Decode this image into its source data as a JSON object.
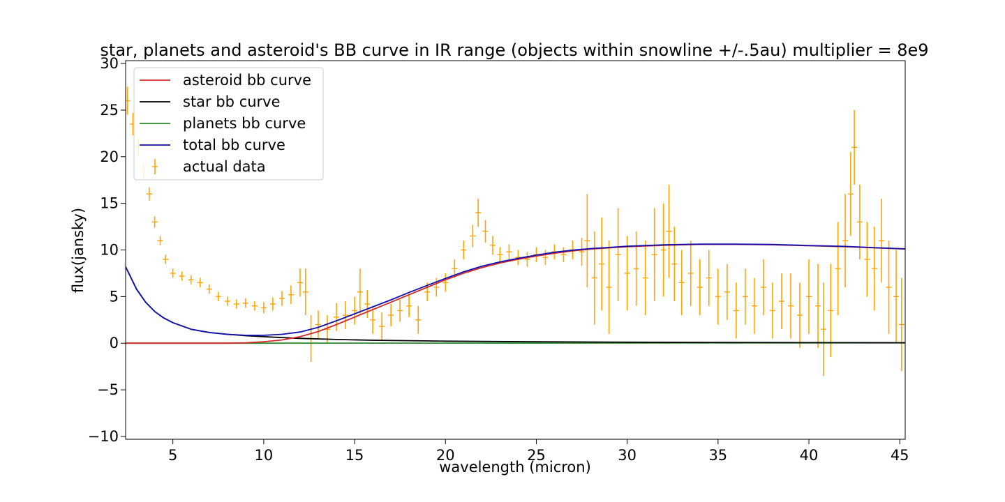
{
  "chart_data": {
    "type": "line",
    "title": "star, planets and asteroid's BB curve in IR range (objects within snowline +/-.5au) multiplier = 8e9",
    "xlabel": "wavelength (micron)",
    "ylabel": "flux(jansky)",
    "xlim": [
      2.4,
      45.3
    ],
    "ylim": [
      -10.3,
      30.3
    ],
    "xticks": [
      5,
      10,
      15,
      20,
      25,
      30,
      35,
      40,
      45
    ],
    "yticks": [
      -10,
      -5,
      0,
      5,
      10,
      15,
      20,
      25,
      30
    ],
    "xtick_labels": [
      "5",
      "10",
      "15",
      "20",
      "25",
      "30",
      "35",
      "40",
      "45"
    ],
    "ytick_labels": [
      "−10",
      "−5",
      "0",
      "5",
      "10",
      "15",
      "20",
      "25",
      "30"
    ],
    "grid": false,
    "legend_position": "top-left",
    "series": [
      {
        "name": "asteroid bb curve",
        "kind": "line",
        "color": "#d62728",
        "x": [
          2.4,
          6,
          8,
          9,
          10,
          11,
          12,
          13,
          14,
          15,
          16,
          17,
          18,
          19,
          20,
          21,
          22,
          23,
          24,
          25,
          26,
          27,
          28,
          30,
          32,
          34,
          36,
          38,
          40,
          42,
          44,
          45.3
        ],
        "y": [
          0,
          0,
          0,
          0.05,
          0.15,
          0.35,
          0.7,
          1.25,
          2.0,
          2.8,
          3.6,
          4.4,
          5.2,
          6.0,
          6.8,
          7.5,
          8.1,
          8.6,
          9.0,
          9.35,
          9.65,
          9.9,
          10.1,
          10.35,
          10.5,
          10.6,
          10.6,
          10.55,
          10.45,
          10.35,
          10.2,
          10.1
        ]
      },
      {
        "name": "star bb curve",
        "kind": "line",
        "color": "#000000",
        "x": [
          2.4,
          3,
          3.5,
          4,
          4.5,
          5,
          6,
          7,
          8,
          9,
          10,
          11,
          12,
          14,
          16,
          18,
          20,
          25,
          30,
          35,
          40,
          45.3
        ],
        "y": [
          8.2,
          5.8,
          4.4,
          3.4,
          2.7,
          2.2,
          1.5,
          1.15,
          0.95,
          0.8,
          0.7,
          0.6,
          0.52,
          0.4,
          0.32,
          0.27,
          0.22,
          0.15,
          0.11,
          0.08,
          0.06,
          0.05
        ]
      },
      {
        "name": "planets bb curve",
        "kind": "line",
        "color": "#2a8a2a",
        "x": [
          2.4,
          10,
          20,
          30,
          40,
          45.3
        ],
        "y": [
          0,
          0,
          0.01,
          0.02,
          0.03,
          0.04
        ]
      },
      {
        "name": "total bb curve",
        "kind": "line",
        "color": "#1010b0",
        "x": [
          2.4,
          3,
          3.5,
          4,
          4.5,
          5,
          6,
          7,
          8,
          9,
          10,
          11,
          12,
          13,
          14,
          15,
          16,
          17,
          18,
          19,
          20,
          21,
          22,
          23,
          24,
          25,
          26,
          27,
          28,
          30,
          32,
          34,
          36,
          38,
          40,
          42,
          44,
          45.3
        ],
        "y": [
          8.2,
          5.8,
          4.4,
          3.4,
          2.7,
          2.2,
          1.5,
          1.15,
          0.95,
          0.85,
          0.85,
          0.95,
          1.2,
          1.7,
          2.4,
          3.15,
          3.9,
          4.65,
          5.45,
          6.2,
          6.95,
          7.65,
          8.25,
          8.72,
          9.1,
          9.45,
          9.75,
          9.98,
          10.15,
          10.4,
          10.55,
          10.62,
          10.62,
          10.58,
          10.48,
          10.38,
          10.22,
          10.12
        ]
      },
      {
        "name": "actual data",
        "kind": "errorbar",
        "color": "#ffa500",
        "x": [
          2.5,
          2.8,
          3.1,
          3.4,
          3.7,
          4.0,
          4.3,
          4.6,
          5.0,
          5.5,
          6.0,
          6.5,
          7.0,
          7.5,
          8.0,
          8.5,
          9.0,
          9.5,
          10.0,
          10.5,
          11.0,
          11.5,
          12.0,
          12.3,
          12.6,
          13.0,
          13.5,
          14.0,
          14.5,
          15.0,
          15.3,
          15.7,
          16.0,
          16.5,
          17.0,
          17.5,
          18.0,
          18.5,
          19.0,
          19.5,
          20.0,
          20.5,
          21.0,
          21.5,
          21.8,
          22.2,
          22.6,
          23.0,
          23.5,
          24.0,
          24.5,
          25.0,
          25.5,
          26.0,
          26.5,
          27.0,
          27.5,
          27.8,
          28.2,
          28.6,
          29.0,
          29.5,
          30.0,
          30.5,
          31.0,
          31.5,
          32.0,
          32.3,
          32.6,
          33.0,
          33.5,
          34.0,
          34.5,
          35.0,
          35.5,
          36.0,
          36.5,
          37.0,
          37.5,
          38.0,
          38.5,
          39.0,
          39.5,
          40.0,
          40.5,
          40.8,
          41.2,
          41.6,
          42.0,
          42.3,
          42.5,
          42.8,
          43.2,
          43.6,
          44.0,
          44.4,
          44.8,
          45.1
        ],
        "y": [
          26,
          23.5,
          21,
          18.5,
          16,
          13,
          11,
          9,
          7.5,
          7.2,
          6.8,
          6.5,
          5.8,
          5.0,
          4.5,
          4.2,
          4.3,
          4.0,
          3.8,
          4.2,
          4.8,
          5.2,
          6.5,
          5.5,
          0.5,
          2.0,
          1.5,
          2.8,
          3.0,
          3.5,
          5.5,
          4.2,
          2.5,
          1.8,
          3.0,
          3.5,
          4.0,
          2.5,
          5.5,
          6.0,
          6.5,
          8.0,
          10.0,
          11.5,
          14.0,
          12.0,
          10.5,
          9.5,
          9.8,
          9.2,
          9.0,
          9.5,
          9.2,
          9.8,
          9.5,
          10.0,
          9.8,
          11.0,
          7.0,
          8.5,
          6.0,
          9.5,
          7.5,
          8.0,
          7.0,
          9.5,
          10.0,
          12.0,
          8.5,
          6.5,
          7.5,
          6.0,
          7.0,
          5.0,
          5.5,
          3.5,
          5.0,
          4.0,
          6.0,
          3.5,
          4.5,
          4.0,
          3.0,
          5.0,
          4.0,
          1.5,
          3.5,
          8.0,
          11.0,
          16.0,
          21.0,
          13.0,
          9.0,
          8.0,
          11.0,
          6.0,
          5.0,
          2.0
        ],
        "yerr": [
          1.5,
          1.2,
          1.0,
          0.8,
          0.7,
          0.6,
          0.5,
          0.5,
          0.5,
          0.5,
          0.5,
          0.5,
          0.5,
          0.5,
          0.5,
          0.5,
          0.5,
          0.5,
          0.6,
          0.7,
          0.8,
          1.0,
          1.5,
          2.5,
          2.5,
          1.5,
          1.5,
          1.5,
          1.5,
          1.5,
          2.5,
          1.5,
          1.5,
          1.5,
          1.2,
          1.2,
          1.2,
          1.5,
          1.0,
          1.0,
          1.0,
          1.0,
          1.0,
          1.2,
          1.5,
          1.2,
          1.0,
          0.8,
          0.8,
          0.8,
          0.8,
          0.8,
          0.8,
          0.8,
          0.8,
          1.0,
          1.5,
          5.0,
          5.0,
          5.0,
          5.0,
          5.0,
          4.0,
          4.0,
          4.0,
          5.0,
          5.0,
          5.0,
          4.0,
          3.5,
          3.5,
          3.0,
          3.0,
          3.0,
          3.0,
          3.0,
          3.0,
          3.0,
          3.0,
          3.0,
          3.0,
          3.5,
          3.5,
          4.0,
          4.5,
          5.0,
          5.0,
          5.0,
          5.0,
          4.5,
          4.0,
          4.0,
          4.0,
          4.5,
          4.5,
          5.0,
          5.0,
          5.0
        ]
      }
    ]
  }
}
